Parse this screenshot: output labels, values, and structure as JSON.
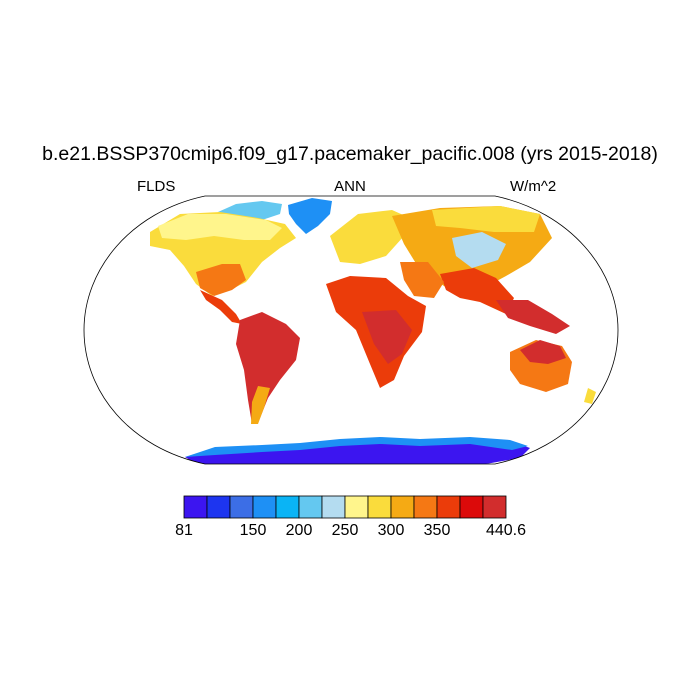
{
  "title": "b.e21.BSSP370cmip6.f09_g17.pacemaker_pacific.008 (yrs 2015-2018)",
  "subtitle_left": "FLDS",
  "subtitle_center": "ANN",
  "subtitle_right": "W/m^2",
  "colorbar": {
    "colors": [
      "#3c15f0",
      "#1d35f0",
      "#3c6ee6",
      "#1e90f5",
      "#0ab4f5",
      "#64c8f0",
      "#b4dcf0",
      "#fff58c",
      "#fadc3c",
      "#f5aa14",
      "#f57814",
      "#eb3c0a",
      "#dc0a0a",
      "#d22d2d"
    ],
    "tick_labels": [
      "81",
      "150",
      "200",
      "250",
      "300",
      "350",
      "440.6"
    ]
  }
}
